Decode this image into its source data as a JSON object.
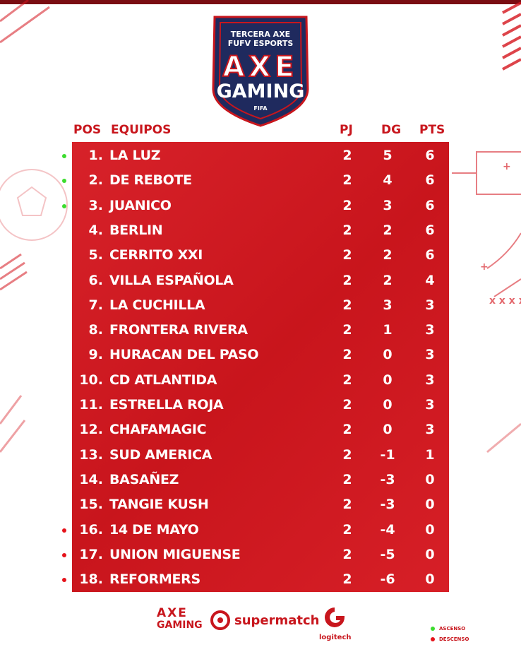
{
  "logo": {
    "line1": "TERCERA AXE",
    "line2": "FUFV ESPORTS",
    "brand": "AXE",
    "sub": "GAMING",
    "small": "FIFA"
  },
  "headers": {
    "pos": "POS",
    "team": "EQUIPOS",
    "pj": "PJ",
    "dg": "DG",
    "pts": "PTS"
  },
  "colors": {
    "table_red": "#d5161e",
    "accent_red": "#c8161d",
    "ascenso": "#3ddc2f",
    "descenso": "#e5131b"
  },
  "rows": [
    {
      "pos": "1.",
      "team": "LA LUZ",
      "pj": "2",
      "dg": "5",
      "pts": "6",
      "status": "ascenso"
    },
    {
      "pos": "2.",
      "team": "DE REBOTE",
      "pj": "2",
      "dg": "4",
      "pts": "6",
      "status": "ascenso"
    },
    {
      "pos": "3.",
      "team": "JUANICO",
      "pj": "2",
      "dg": "3",
      "pts": "6",
      "status": "ascenso"
    },
    {
      "pos": "4.",
      "team": "BERLIN",
      "pj": "2",
      "dg": "2",
      "pts": "6",
      "status": ""
    },
    {
      "pos": "5.",
      "team": "CERRITO XXI",
      "pj": "2",
      "dg": "2",
      "pts": "6",
      "status": ""
    },
    {
      "pos": "6.",
      "team": "VILLA ESPAÑOLA",
      "pj": "2",
      "dg": "2",
      "pts": "4",
      "status": ""
    },
    {
      "pos": "7.",
      "team": "LA CUCHILLA",
      "pj": "2",
      "dg": "3",
      "pts": "3",
      "status": ""
    },
    {
      "pos": "8.",
      "team": "FRONTERA RIVERA",
      "pj": "2",
      "dg": "1",
      "pts": "3",
      "status": ""
    },
    {
      "pos": "9.",
      "team": "HURACAN DEL PASO",
      "pj": "2",
      "dg": "0",
      "pts": "3",
      "status": ""
    },
    {
      "pos": "10.",
      "team": "CD ATLANTIDA",
      "pj": "2",
      "dg": "0",
      "pts": "3",
      "status": ""
    },
    {
      "pos": "11.",
      "team": "ESTRELLA ROJA",
      "pj": "2",
      "dg": "0",
      "pts": "3",
      "status": ""
    },
    {
      "pos": "12.",
      "team": "CHAFAMAGIC",
      "pj": "2",
      "dg": "0",
      "pts": "3",
      "status": ""
    },
    {
      "pos": "13.",
      "team": "SUD AMERICA",
      "pj": "2",
      "dg": "-1",
      "pts": "1",
      "status": ""
    },
    {
      "pos": "14.",
      "team": "BASAÑEZ",
      "pj": "2",
      "dg": "-3",
      "pts": "0",
      "status": ""
    },
    {
      "pos": "15.",
      "team": "TANGIE KUSH",
      "pj": "2",
      "dg": "-3",
      "pts": "0",
      "status": ""
    },
    {
      "pos": "16.",
      "team": "14 DE MAYO",
      "pj": "2",
      "dg": "-4",
      "pts": "0",
      "status": "descenso"
    },
    {
      "pos": "17.",
      "team": "UNION MIGUENSE",
      "pj": "2",
      "dg": "-5",
      "pts": "0",
      "status": "descenso"
    },
    {
      "pos": "18.",
      "team": "REFORMERS",
      "pj": "2",
      "dg": "-6",
      "pts": "0",
      "status": "descenso"
    }
  ],
  "sponsors": {
    "axe_line1": "AXE",
    "axe_line2": "GAMING",
    "supermatch": "supermatch",
    "logitech": "logitech"
  },
  "legend": {
    "ascenso": "ASCENSO",
    "descenso": "DESCENSO"
  }
}
